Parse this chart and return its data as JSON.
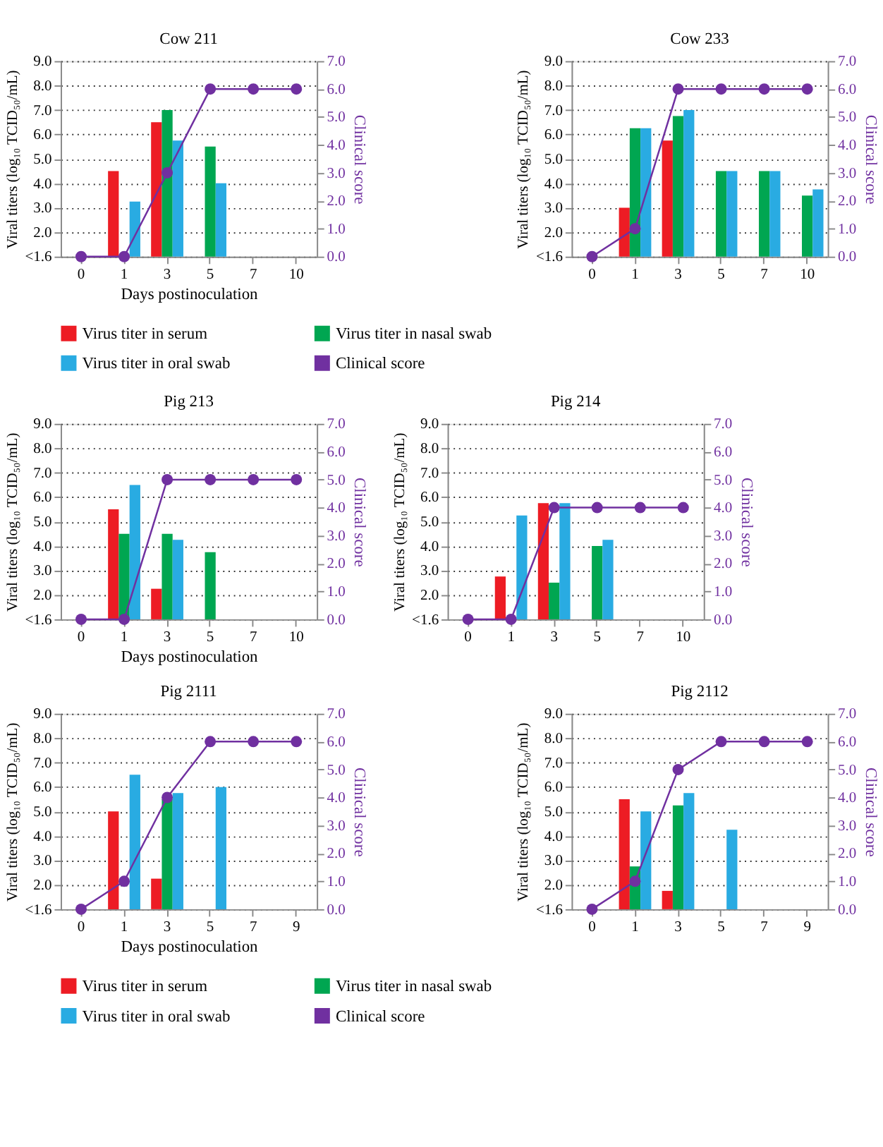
{
  "chart_data": [
    {
      "type": "bar",
      "title": "Cow 211",
      "categories": [
        "0",
        "1",
        "3",
        "5",
        "7",
        "10"
      ],
      "xlabel": "Days postinoculation",
      "ylabel": "Viral titers (log₁₀ TCID₅₀/mL)",
      "y2label": "Clinical score",
      "ylim": [
        1,
        9
      ],
      "yticks": [
        {
          "value": 1,
          "label": "<1.6"
        },
        {
          "value": 2,
          "label": "2.0"
        },
        {
          "value": 3,
          "label": "3.0"
        },
        {
          "value": 4,
          "label": "4.0"
        },
        {
          "value": 5,
          "label": "5.0"
        },
        {
          "value": 6,
          "label": "6.0"
        },
        {
          "value": 7,
          "label": "7.0"
        },
        {
          "value": 8,
          "label": "8.0"
        },
        {
          "value": 9,
          "label": "9.0"
        }
      ],
      "y2lim": [
        0,
        7
      ],
      "y2ticks": [
        {
          "value": 0,
          "label": "0.0"
        },
        {
          "value": 1,
          "label": "1.0"
        },
        {
          "value": 2,
          "label": "2.0"
        },
        {
          "value": 3,
          "label": "3.0"
        },
        {
          "value": 4,
          "label": "4.0"
        },
        {
          "value": 5,
          "label": "5.0"
        },
        {
          "value": 6,
          "label": "6.0"
        },
        {
          "value": 7,
          "label": "7.0"
        }
      ],
      "grid": "y",
      "legend": "bottom",
      "series": [
        {
          "name": "Virus titer in serum",
          "color": "#ed1c24",
          "values": [
            1,
            4.5,
            6.5,
            1,
            1,
            1
          ]
        },
        {
          "name": "Virus titer in nasal swab",
          "color": "#00a651",
          "values": [
            1,
            1,
            7.0,
            5.5,
            1,
            1
          ]
        },
        {
          "name": "Virus titer in oral swab",
          "color": "#29abe2",
          "values": [
            1,
            3.25,
            5.75,
            4.0,
            1,
            1
          ]
        },
        {
          "name": "Clinical score",
          "type": "line",
          "axis": "y2",
          "marker": "circle",
          "color": "#7030a0",
          "values": [
            0,
            0,
            3,
            6,
            6,
            6
          ]
        }
      ]
    },
    {
      "type": "bar",
      "title": "Cow 233",
      "categories": [
        "0",
        "1",
        "3",
        "5",
        "7",
        "10"
      ],
      "ylabel": "Viral titers (log₁₀ TCID₅₀/mL)",
      "y2label": "Clinical score",
      "ylim": [
        1,
        9
      ],
      "yticks": [
        {
          "value": 1,
          "label": "<1.6"
        },
        {
          "value": 2,
          "label": "2.0"
        },
        {
          "value": 3,
          "label": "3.0"
        },
        {
          "value": 4,
          "label": "4.0"
        },
        {
          "value": 5,
          "label": "5.0"
        },
        {
          "value": 6,
          "label": "6.0"
        },
        {
          "value": 7,
          "label": "7.0"
        },
        {
          "value": 8,
          "label": "8.0"
        },
        {
          "value": 9,
          "label": "9.0"
        }
      ],
      "y2lim": [
        0,
        7
      ],
      "y2ticks": [
        {
          "value": 0,
          "label": "0.0"
        },
        {
          "value": 1,
          "label": "1.0"
        },
        {
          "value": 2,
          "label": "2.0"
        },
        {
          "value": 3,
          "label": "3.0"
        },
        {
          "value": 4,
          "label": "4.0"
        },
        {
          "value": 5,
          "label": "5.0"
        },
        {
          "value": 6,
          "label": "6.0"
        },
        {
          "value": 7,
          "label": "7.0"
        }
      ],
      "grid": "y",
      "series": [
        {
          "color": "#ed1c24",
          "values": [
            1,
            3.0,
            5.75,
            1,
            1,
            1
          ]
        },
        {
          "color": "#00a651",
          "values": [
            1,
            6.25,
            6.75,
            4.5,
            4.5,
            3.5
          ]
        },
        {
          "color": "#29abe2",
          "values": [
            1,
            6.25,
            7.0,
            4.5,
            4.5,
            3.75
          ]
        },
        {
          "type": "line",
          "axis": "y2",
          "marker": "circle",
          "color": "#7030a0",
          "values": [
            0,
            1,
            6,
            6,
            6,
            6
          ]
        }
      ]
    },
    {
      "type": "bar",
      "title": "Pig 213",
      "categories": [
        "0",
        "1",
        "3",
        "5",
        "7",
        "10"
      ],
      "xlabel": "Days postinoculation",
      "ylabel": "Viral titers (log₁₀ TCID₅₀/mL)",
      "y2label": "Clinical score",
      "ylim": [
        1,
        9
      ],
      "yticks": [
        {
          "value": 1,
          "label": "<1.6"
        },
        {
          "value": 2,
          "label": "2.0"
        },
        {
          "value": 3,
          "label": "3.0"
        },
        {
          "value": 4,
          "label": "4.0"
        },
        {
          "value": 5,
          "label": "5.0"
        },
        {
          "value": 6,
          "label": "6.0"
        },
        {
          "value": 7,
          "label": "7.0"
        },
        {
          "value": 8,
          "label": "8.0"
        },
        {
          "value": 9,
          "label": "9.0"
        }
      ],
      "y2lim": [
        0,
        7
      ],
      "y2ticks": [
        {
          "value": 0,
          "label": "0.0"
        },
        {
          "value": 1,
          "label": "1.0"
        },
        {
          "value": 2,
          "label": "2.0"
        },
        {
          "value": 3,
          "label": "3.0"
        },
        {
          "value": 4,
          "label": "4.0"
        },
        {
          "value": 5,
          "label": "5.0"
        },
        {
          "value": 6,
          "label": "6.0"
        },
        {
          "value": 7,
          "label": "7.0"
        }
      ],
      "grid": "y",
      "series": [
        {
          "color": "#ed1c24",
          "values": [
            1,
            5.5,
            2.25,
            1,
            1,
            1
          ]
        },
        {
          "color": "#00a651",
          "values": [
            1,
            4.5,
            4.5,
            3.75,
            1,
            1
          ]
        },
        {
          "color": "#29abe2",
          "values": [
            1,
            6.5,
            4.25,
            1,
            1,
            1
          ]
        },
        {
          "type": "line",
          "axis": "y2",
          "marker": "circle",
          "color": "#7030a0",
          "values": [
            0,
            0,
            5,
            5,
            5,
            5
          ]
        }
      ]
    },
    {
      "type": "bar",
      "title": "Pig 214",
      "categories": [
        "0",
        "1",
        "3",
        "5",
        "7",
        "10"
      ],
      "ylabel": "Viral titers (log₁₀ TCID₅₀/mL)",
      "y2label": "Clinical score",
      "ylim": [
        1,
        9
      ],
      "yticks": [
        {
          "value": 1,
          "label": "<1.6"
        },
        {
          "value": 2,
          "label": "2.0"
        },
        {
          "value": 3,
          "label": "3.0"
        },
        {
          "value": 4,
          "label": "4.0"
        },
        {
          "value": 5,
          "label": "5.0"
        },
        {
          "value": 6,
          "label": "6.0"
        },
        {
          "value": 7,
          "label": "7.0"
        },
        {
          "value": 8,
          "label": "8.0"
        },
        {
          "value": 9,
          "label": "9.0"
        }
      ],
      "y2lim": [
        0,
        7
      ],
      "y2ticks": [
        {
          "value": 0,
          "label": "0.0"
        },
        {
          "value": 1,
          "label": "1.0"
        },
        {
          "value": 2,
          "label": "2.0"
        },
        {
          "value": 3,
          "label": "3.0"
        },
        {
          "value": 4,
          "label": "4.0"
        },
        {
          "value": 5,
          "label": "5.0"
        },
        {
          "value": 6,
          "label": "6.0"
        },
        {
          "value": 7,
          "label": "7.0"
        }
      ],
      "grid": "y",
      "series": [
        {
          "color": "#ed1c24",
          "values": [
            1,
            2.75,
            5.75,
            1,
            1,
            1
          ]
        },
        {
          "color": "#00a651",
          "values": [
            1,
            1,
            2.5,
            4.0,
            1,
            1
          ]
        },
        {
          "color": "#29abe2",
          "values": [
            1,
            5.25,
            5.75,
            4.25,
            1,
            1
          ]
        },
        {
          "type": "line",
          "axis": "y2",
          "marker": "circle",
          "color": "#7030a0",
          "values": [
            0,
            0,
            4,
            4,
            4,
            4
          ]
        }
      ]
    },
    {
      "type": "bar",
      "title": "Pig 2111",
      "categories": [
        "0",
        "1",
        "3",
        "5",
        "7",
        "9"
      ],
      "xlabel": "Days postinoculation",
      "ylabel": "Viral titers (log₁₀ TCID₅₀/mL)",
      "y2label": "Clinical score",
      "ylim": [
        1,
        9
      ],
      "yticks": [
        {
          "value": 1,
          "label": "<1.6"
        },
        {
          "value": 2,
          "label": "2.0"
        },
        {
          "value": 3,
          "label": "3.0"
        },
        {
          "value": 4,
          "label": "4.0"
        },
        {
          "value": 5,
          "label": "5.0"
        },
        {
          "value": 6,
          "label": "6.0"
        },
        {
          "value": 7,
          "label": "7.0"
        },
        {
          "value": 8,
          "label": "8.0"
        },
        {
          "value": 9,
          "label": "9.0"
        }
      ],
      "y2lim": [
        0,
        7
      ],
      "y2ticks": [
        {
          "value": 0,
          "label": "0.0"
        },
        {
          "value": 1,
          "label": "1.0"
        },
        {
          "value": 2,
          "label": "2.0"
        },
        {
          "value": 3,
          "label": "3.0"
        },
        {
          "value": 4,
          "label": "4.0"
        },
        {
          "value": 5,
          "label": "5.0"
        },
        {
          "value": 6,
          "label": "6.0"
        },
        {
          "value": 7,
          "label": "7.0"
        }
      ],
      "grid": "y",
      "legend": "bottom",
      "series": [
        {
          "name": "Virus titer in serum",
          "color": "#ed1c24",
          "values": [
            1,
            5.0,
            2.25,
            1,
            1,
            1
          ]
        },
        {
          "name": "Virus titer in nasal swab",
          "color": "#00a651",
          "values": [
            1,
            1,
            5.5,
            1,
            1,
            1
          ]
        },
        {
          "name": "Virus titer in oral swab",
          "color": "#29abe2",
          "values": [
            1,
            6.5,
            5.75,
            6.0,
            1,
            1
          ]
        },
        {
          "name": "Clinical score",
          "type": "line",
          "axis": "y2",
          "marker": "circle",
          "color": "#7030a0",
          "values": [
            0,
            1,
            4,
            6,
            6,
            6
          ]
        }
      ]
    },
    {
      "type": "bar",
      "title": "Pig 2112",
      "categories": [
        "0",
        "1",
        "3",
        "5",
        "7",
        "9"
      ],
      "ylabel": "Viral titers (log₁₀ TCID₅₀/mL)",
      "y2label": "Clinical score",
      "ylim": [
        1,
        9
      ],
      "yticks": [
        {
          "value": 1,
          "label": "<1.6"
        },
        {
          "value": 2,
          "label": "2.0"
        },
        {
          "value": 3,
          "label": "3.0"
        },
        {
          "value": 4,
          "label": "4.0"
        },
        {
          "value": 5,
          "label": "5.0"
        },
        {
          "value": 6,
          "label": "6.0"
        },
        {
          "value": 7,
          "label": "7.0"
        },
        {
          "value": 8,
          "label": "8.0"
        },
        {
          "value": 9,
          "label": "9.0"
        }
      ],
      "y2lim": [
        0,
        7
      ],
      "y2ticks": [
        {
          "value": 0,
          "label": "0.0"
        },
        {
          "value": 1,
          "label": "1.0"
        },
        {
          "value": 2,
          "label": "2.0"
        },
        {
          "value": 3,
          "label": "3.0"
        },
        {
          "value": 4,
          "label": "4.0"
        },
        {
          "value": 5,
          "label": "5.0"
        },
        {
          "value": 6,
          "label": "6.0"
        },
        {
          "value": 7,
          "label": "7.0"
        }
      ],
      "grid": "y",
      "series": [
        {
          "color": "#ed1c24",
          "values": [
            1,
            5.5,
            1.75,
            1,
            1,
            1
          ]
        },
        {
          "color": "#00a651",
          "values": [
            1,
            2.75,
            5.25,
            1,
            1,
            1
          ]
        },
        {
          "color": "#29abe2",
          "values": [
            1,
            5.0,
            5.75,
            4.25,
            1,
            1
          ]
        },
        {
          "type": "line",
          "axis": "y2",
          "marker": "circle",
          "color": "#7030a0",
          "values": [
            0,
            1,
            5,
            6,
            6,
            6
          ]
        }
      ]
    }
  ]
}
